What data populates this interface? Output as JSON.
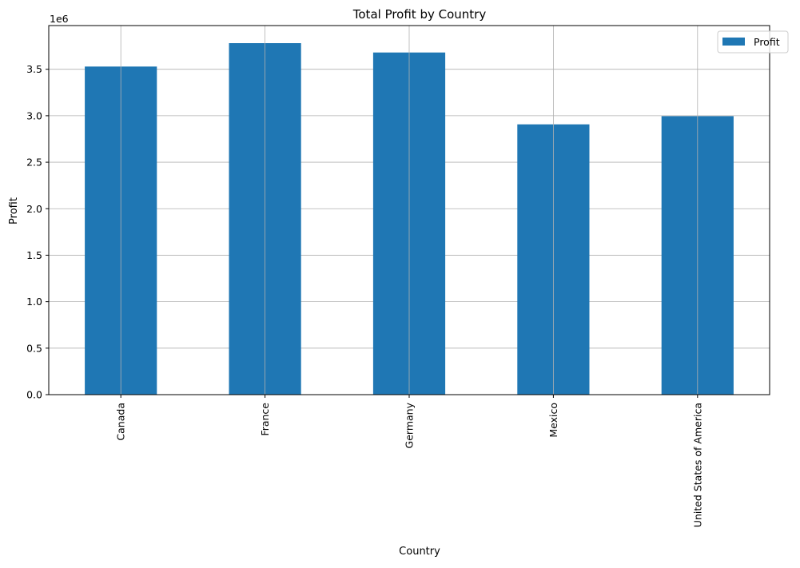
{
  "chart_data": {
    "type": "bar",
    "title": "Total Profit by Country",
    "xlabel": "Country",
    "ylabel": "Profit",
    "y_offset_label": "1e6",
    "categories": [
      "Canada",
      "France",
      "Germany",
      "Mexico",
      "United States of America"
    ],
    "series": [
      {
        "name": "Profit",
        "values": [
          3529229,
          3781020,
          3680389,
          2907523,
          2995541
        ]
      }
    ],
    "ylim": [
      0,
      3970071
    ],
    "y_ticks": [
      0,
      500000,
      1000000,
      1500000,
      2000000,
      2500000,
      3000000,
      3500000
    ],
    "y_tick_labels": [
      "0.0",
      "0.5",
      "1.0",
      "1.5",
      "2.0",
      "2.5",
      "3.0",
      "3.5"
    ],
    "grid": true,
    "legend_position": "top-right",
    "x_tick_rotation": "vertical",
    "colors": {
      "bar": "#1f77b4",
      "grid": "#b0b0b0",
      "axis": "#000000"
    }
  }
}
